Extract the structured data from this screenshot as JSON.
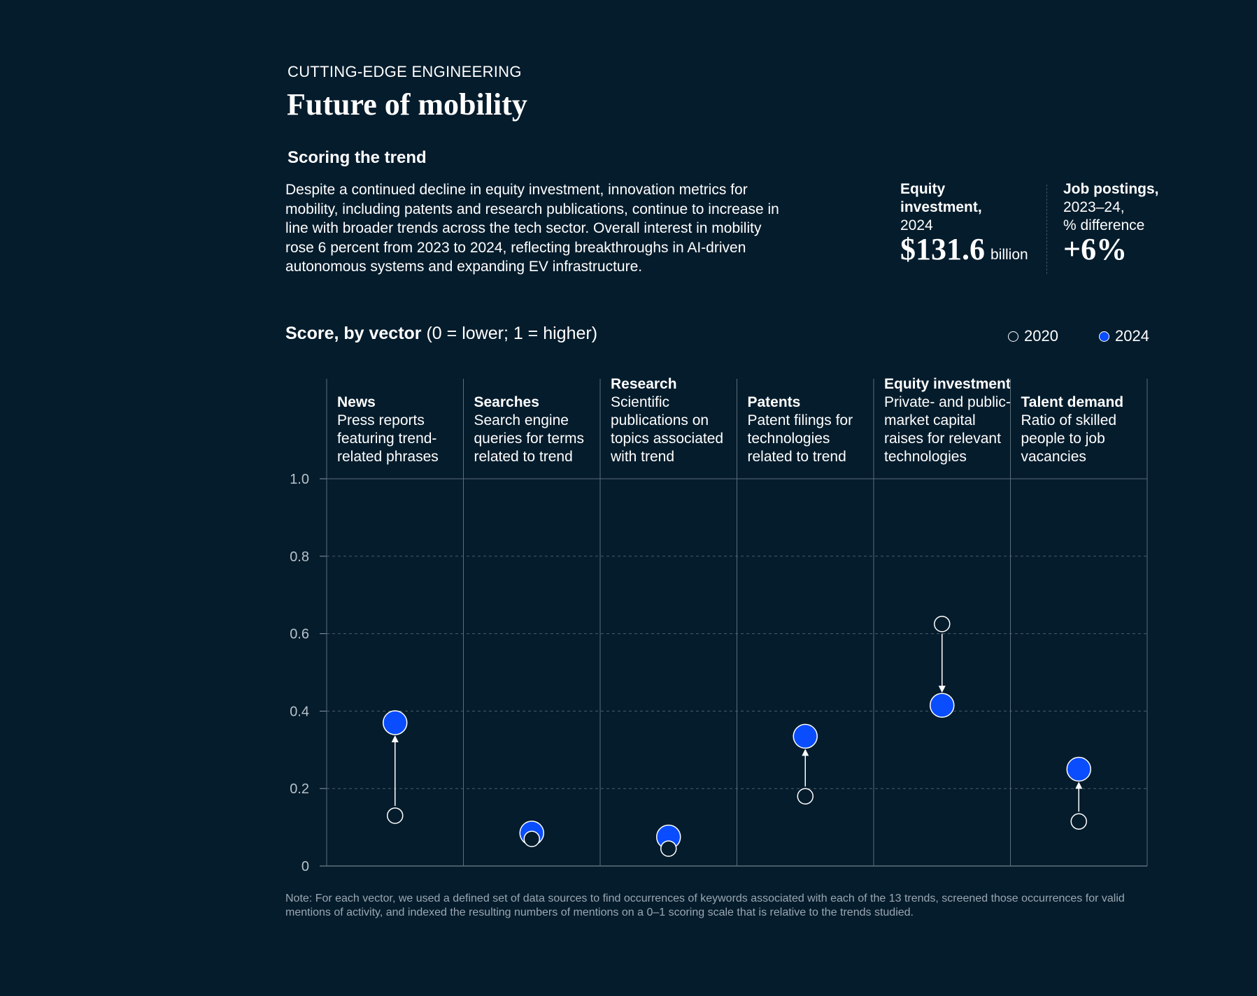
{
  "header": {
    "eyebrow": "CUTTING-EDGE ENGINEERING",
    "title": "Future of mobility",
    "subhead": "Scoring the trend",
    "body": "Despite a continued decline in equity investment, innovation metrics for mobility, including patents and research publications, continue to increase in line with broader trends across the tech sector. Overall interest in mobility rose 6 percent from 2023 to 2024, reflecting breakthroughs in AI-driven autonomous systems and expanding EV infrastructure."
  },
  "stats": {
    "equity": {
      "label_bold_1": "Equity",
      "label_bold_2": "investment,",
      "label_2": "2024",
      "value": "$131.6",
      "unit": "billion"
    },
    "jobs": {
      "label_bold": "Job postings,",
      "label_2": "2023–24,",
      "label_3": "% difference",
      "value": "+6%"
    }
  },
  "colors": {
    "background": "#051C2C",
    "accent_2024": "#0A4DFF",
    "gridline": "#5B6E7B"
  },
  "chart_data": {
    "type": "scatter",
    "title_bold": "Score, by vector",
    "title_rest": " (0 = lower; 1 = higher)",
    "legend": {
      "series_2020": "2020",
      "series_2024": "2024",
      "placement": "top-right"
    },
    "ylim": [
      0,
      1.0
    ],
    "yticks": [
      {
        "v": 0,
        "label": "0"
      },
      {
        "v": 0.2,
        "label": "0.2"
      },
      {
        "v": 0.4,
        "label": "0.4"
      },
      {
        "v": 0.6,
        "label": "0.6"
      },
      {
        "v": 0.8,
        "label": "0.8"
      },
      {
        "v": 1.0,
        "label": "1.0"
      }
    ],
    "vectors": [
      {
        "name": "News",
        "desc": "Press reports featuring trend-related phrases",
        "line1": "Press reports",
        "line2": "featuring trend-",
        "line3": "related phrases",
        "v2020": 0.13,
        "v2024": 0.37
      },
      {
        "name": "Searches",
        "line1": "Search engine",
        "line2": "queries for terms",
        "line3": "related to trend",
        "v2020": 0.07,
        "v2024": 0.085
      },
      {
        "name": "Research",
        "line1": "Scientific",
        "line2": "publications on",
        "line3": "topics associated",
        "line4": "with trend",
        "v2020": 0.045,
        "v2024": 0.075
      },
      {
        "name": "Patents",
        "line1": "Patent filings for",
        "line2": "technologies",
        "line3": "related to trend",
        "v2020": 0.18,
        "v2024": 0.335
      },
      {
        "name": "Equity investment",
        "line1": "Private- and public-",
        "line2": "market capital",
        "line3": "raises for relevant",
        "line4": "technologies",
        "v2020": 0.625,
        "v2024": 0.415
      },
      {
        "name": "Talent demand",
        "line1": "Ratio of skilled",
        "line2": "people to job",
        "line3": "vacancies",
        "v2020": 0.115,
        "v2024": 0.25
      }
    ]
  },
  "note": "Note: For each vector, we used a defined set of data sources to find occurrences of keywords associated with each of the 13 trends, screened those occurrences for valid mentions of activity, and indexed the resulting numbers of mentions on a 0–1 scoring scale that is relative to the trends studied."
}
